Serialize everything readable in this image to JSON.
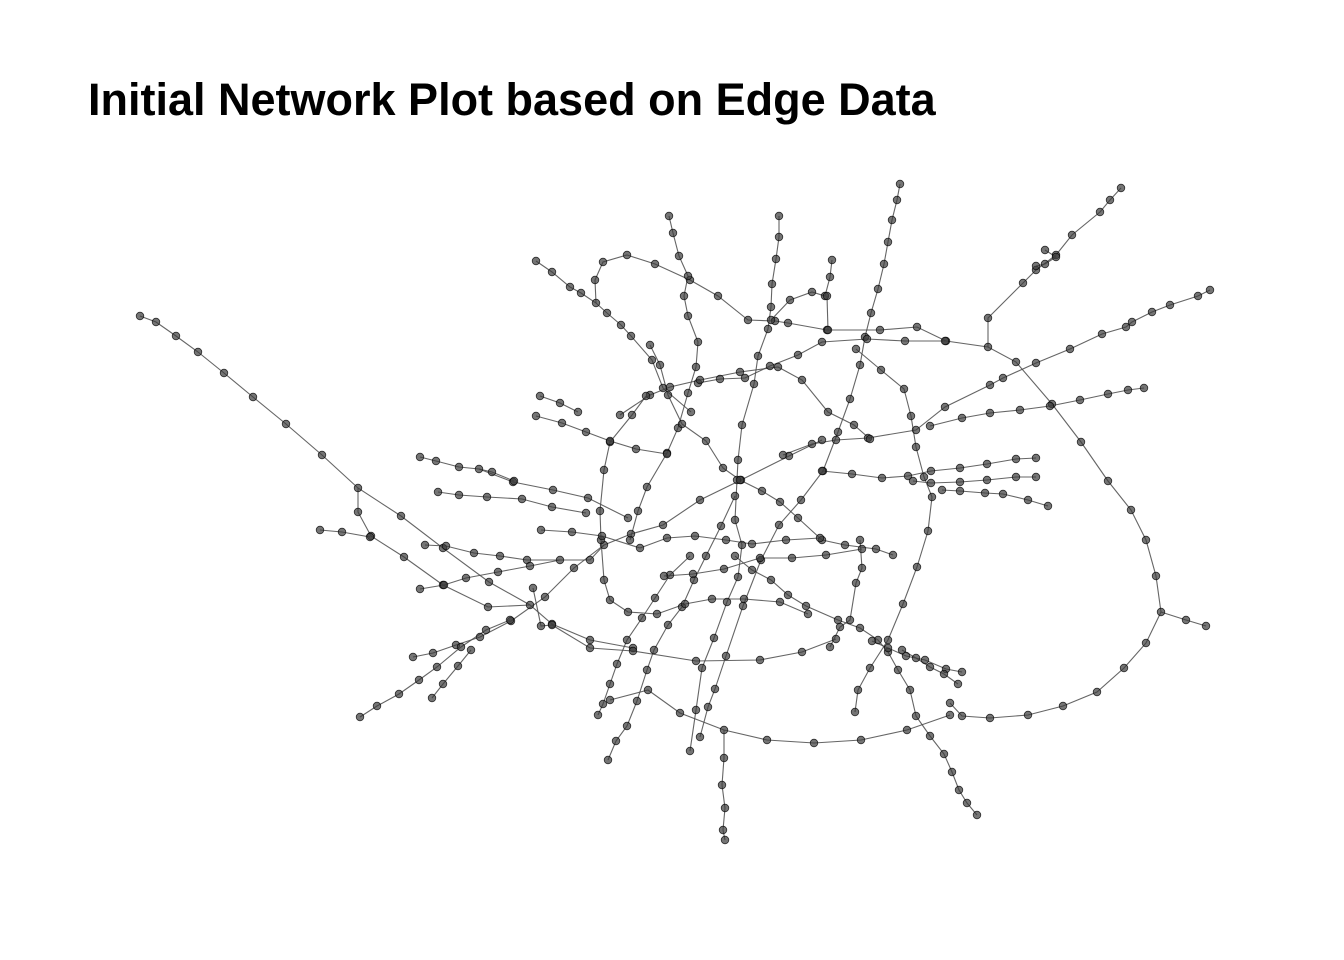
{
  "plot": {
    "title": "Initial Network Plot based on Edge Data"
  },
  "style": {
    "edge_color": "#4a4a4a",
    "node_color": "#3a3a3a"
  },
  "chart_data": {
    "type": "network",
    "title": "Initial Network Plot based on Edge Data",
    "axes": "none",
    "grid": false,
    "legend": "none"
  }
}
